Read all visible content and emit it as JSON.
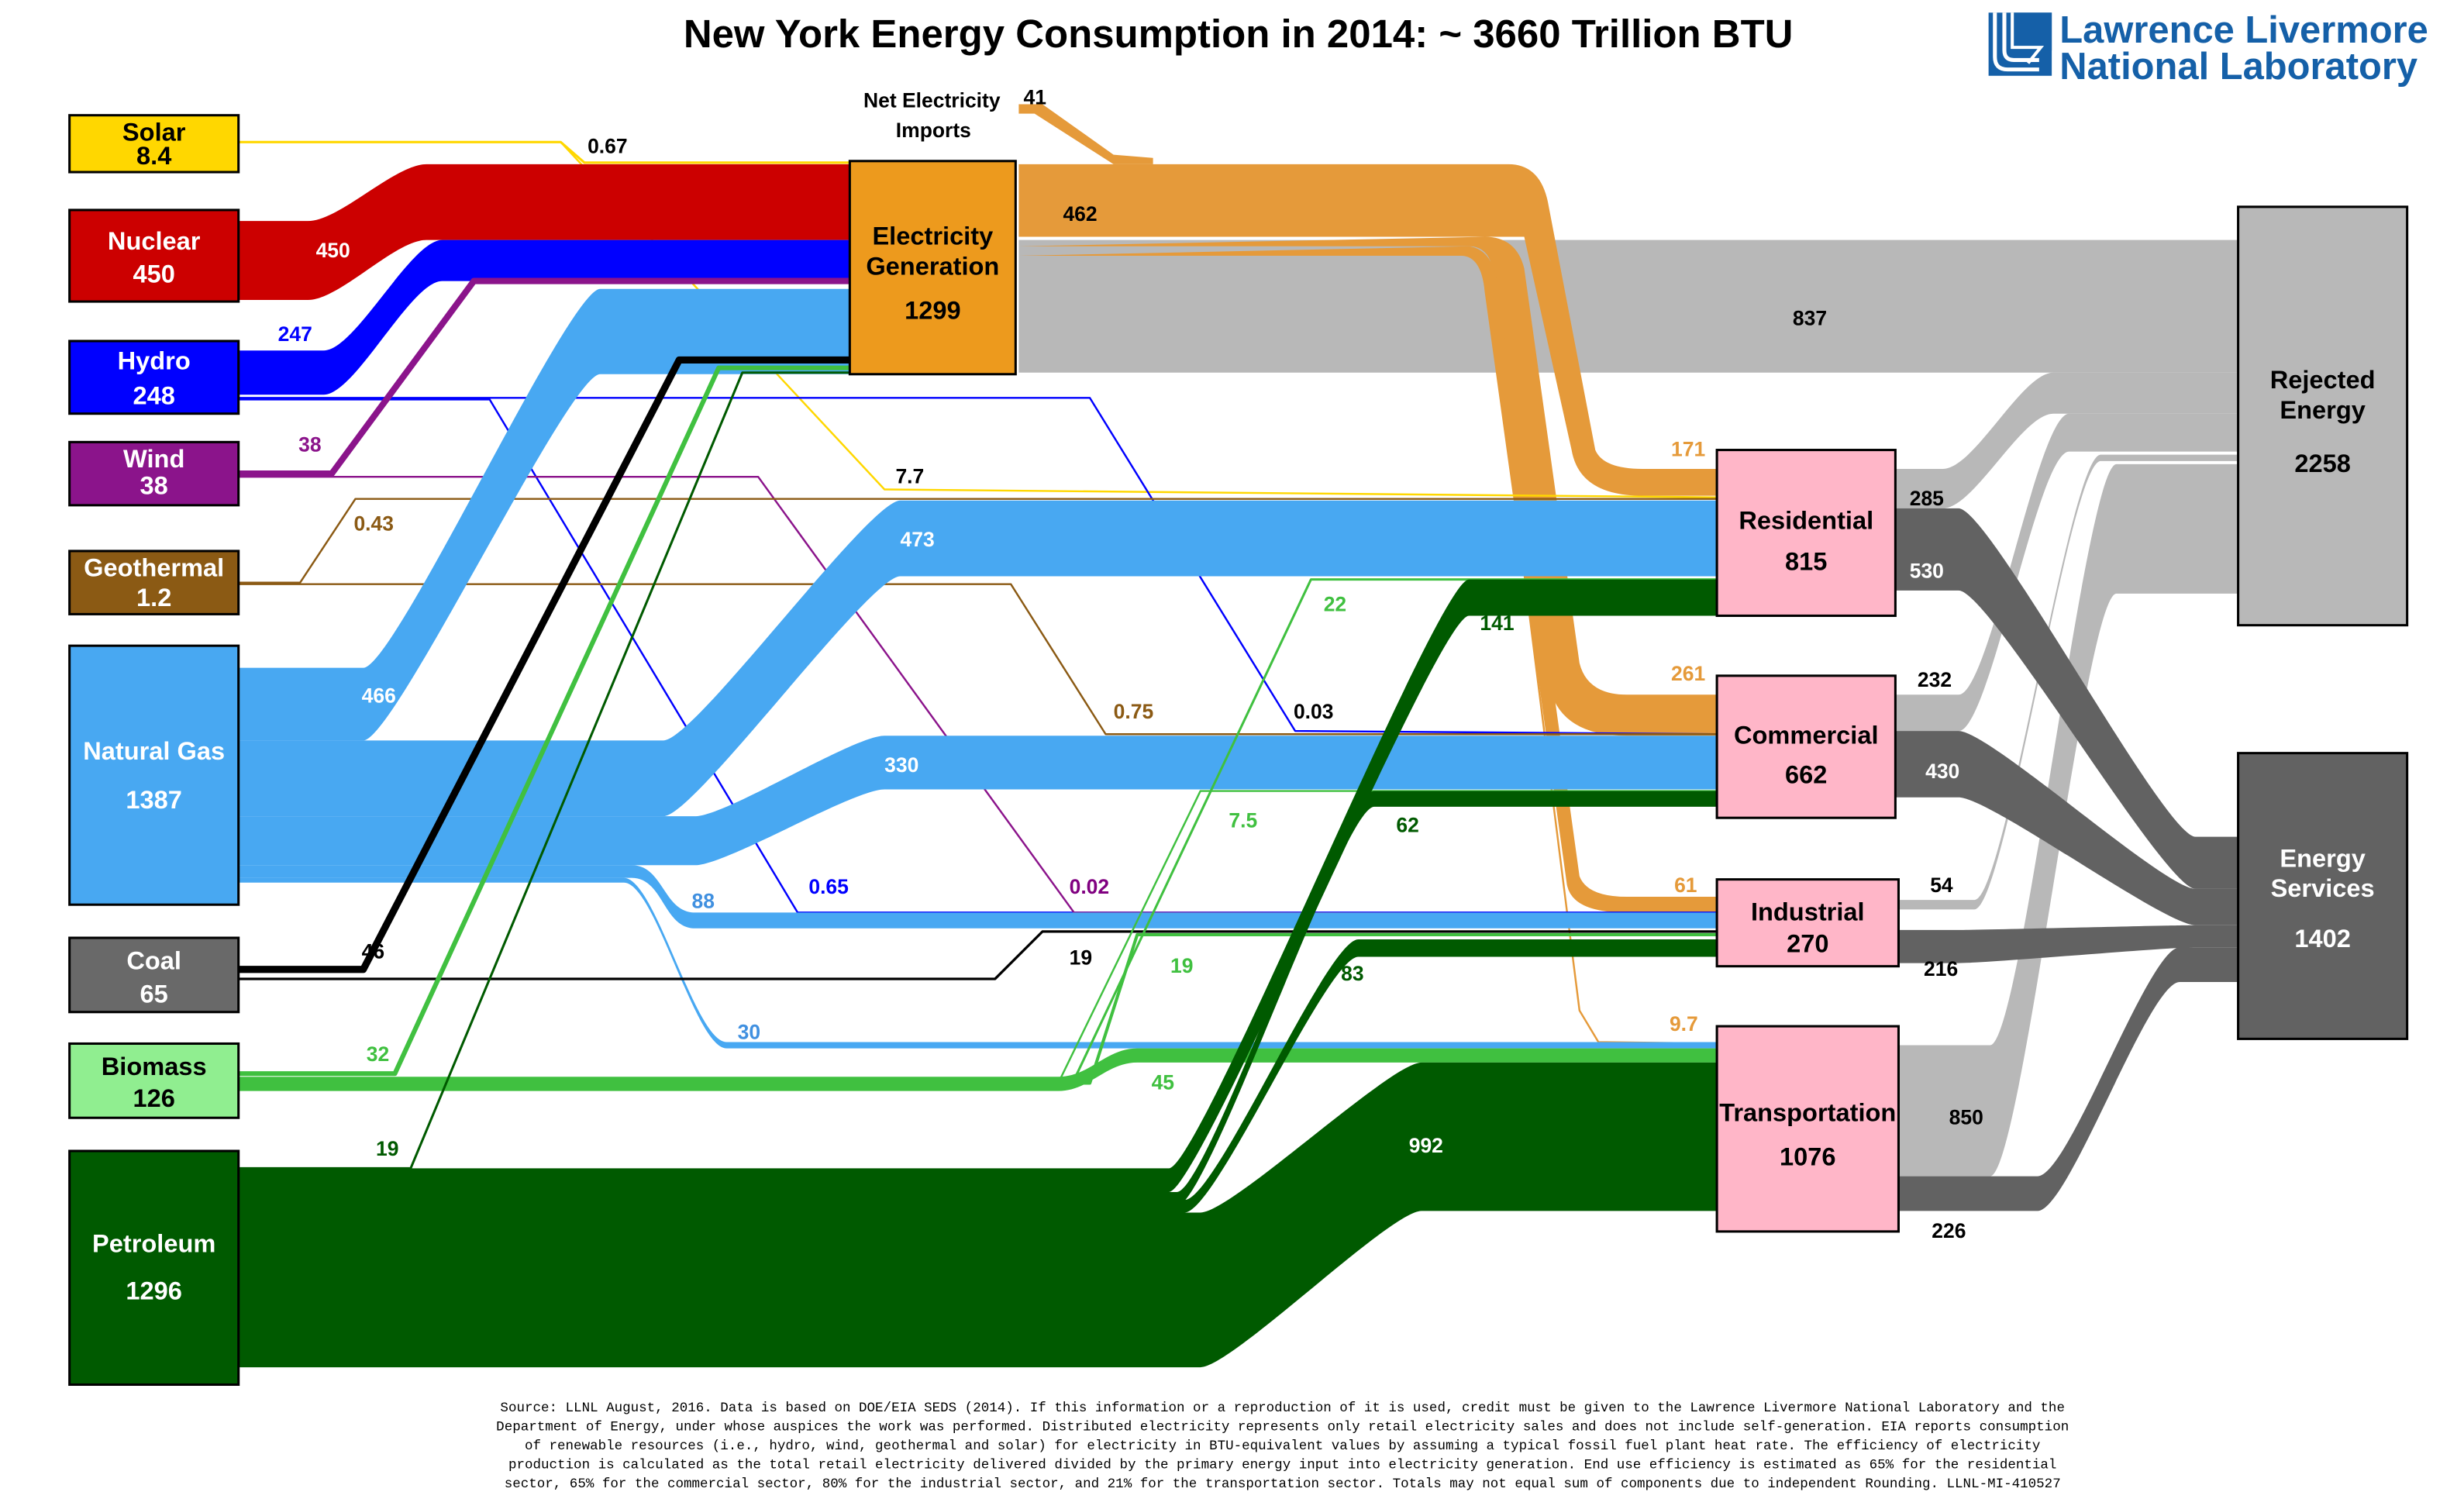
{
  "title": "New York Energy Consumption in 2014: ~ 3660 Trillion BTU",
  "logo": {
    "line1": "Lawrence Livermore",
    "line2": "National Laboratory",
    "color": "#1560a8"
  },
  "footer": [
    "Source: LLNL August, 2016. Data is based on DOE/EIA SEDS (2014). If this information or a reproduction of it is used, credit must be given to the Lawrence Livermore National Laboratory and the",
    "Department of Energy, under whose auspices the work was performed. Distributed electricity represents only retail electricity sales and does not include self-generation.  EIA reports consumption",
    "of renewable resources (i.e., hydro, wind, geothermal and solar) for electricity in BTU-equivalent values by assuming a typical fossil fuel plant heat rate.  The efficiency of electricity",
    "production is calculated as the total retail electricity delivered divided by the primary energy input into electricity generation.  End use efficiency is estimated as 65% for the residential",
    "sector, 65% for the commercial sector, 80% for the industrial sector, and 21% for the transportation sector.  Totals may not equal sum of components due to independent Rounding. LLNL-MI-410527"
  ],
  "chart_data": {
    "type": "sankey",
    "title": "New York Energy Consumption in 2014: ~ 3660 Trillion BTU",
    "units": "Trillion BTU",
    "nodes": [
      {
        "id": "solar",
        "label": "Solar",
        "value": "8.4",
        "color": "#ffd700",
        "text_color": "#000000"
      },
      {
        "id": "nuclear",
        "label": "Nuclear",
        "value": "450",
        "color": "#cc0000",
        "text_color": "#ffffff"
      },
      {
        "id": "hydro",
        "label": "Hydro",
        "value": "248",
        "color": "#0000ff",
        "text_color": "#ffffff"
      },
      {
        "id": "wind",
        "label": "Wind",
        "value": "38",
        "color": "#8b148b",
        "text_color": "#ffffff"
      },
      {
        "id": "geothermal",
        "label": "Geothermal",
        "value": "1.2",
        "color": "#8b5a14",
        "text_color": "#ffffff"
      },
      {
        "id": "natural_gas",
        "label": "Natural Gas",
        "value": "1387",
        "color": "#48a8f2",
        "text_color": "#ffffff"
      },
      {
        "id": "coal",
        "label": "Coal",
        "value": "65",
        "color": "#696969",
        "text_color": "#ffffff"
      },
      {
        "id": "biomass",
        "label": "Biomass",
        "value": "126",
        "color": "#90ee90",
        "text_color": "#000000"
      },
      {
        "id": "petroleum",
        "label": "Petroleum",
        "value": "1296",
        "color": "#005a00",
        "text_color": "#ffffff"
      },
      {
        "id": "net_imports",
        "label": "Net Electricity Imports",
        "value": "41",
        "color": "#e59a3a",
        "text_color": "#000000"
      },
      {
        "id": "elec_gen",
        "label": "Electricity Generation",
        "value": "1299",
        "color": "#ed9a1d",
        "text_color": "#000000"
      },
      {
        "id": "residential",
        "label": "Residential",
        "value": "815",
        "color": "#ffb6c8",
        "text_color": "#000000"
      },
      {
        "id": "commercial",
        "label": "Commercial",
        "value": "662",
        "color": "#ffb6c8",
        "text_color": "#000000"
      },
      {
        "id": "industrial",
        "label": "Industrial",
        "value": "270",
        "color": "#ffb6c8",
        "text_color": "#000000"
      },
      {
        "id": "transportation",
        "label": "Transportation",
        "value": "1076",
        "color": "#ffb6c8",
        "text_color": "#000000"
      },
      {
        "id": "rejected",
        "label": "Rejected Energy",
        "value": "2258",
        "color": "#b8b8b8",
        "text_color": "#000000"
      },
      {
        "id": "services",
        "label": "Energy Services",
        "value": "1402",
        "color": "#626262",
        "text_color": "#ffffff"
      }
    ],
    "flows": [
      {
        "from": "solar",
        "to": "elec_gen",
        "value": "0.67",
        "color": "#ffd700"
      },
      {
        "from": "solar",
        "to": "residential",
        "value": "7.7",
        "color": "#ffd700"
      },
      {
        "from": "nuclear",
        "to": "elec_gen",
        "value": "450",
        "color": "#cc0000"
      },
      {
        "from": "hydro",
        "to": "elec_gen",
        "value": "247",
        "color": "#0000ff"
      },
      {
        "from": "hydro",
        "to": "commercial",
        "value": "0.03",
        "color": "#0000ff"
      },
      {
        "from": "hydro",
        "to": "industrial",
        "value": "0.65",
        "color": "#0000ff"
      },
      {
        "from": "wind",
        "to": "elec_gen",
        "value": "38",
        "color": "#8b148b"
      },
      {
        "from": "wind",
        "to": "industrial",
        "value": "0.02",
        "color": "#8b148b"
      },
      {
        "from": "geothermal",
        "to": "residential",
        "value": "0.43",
        "color": "#8b5a14"
      },
      {
        "from": "geothermal",
        "to": "commercial",
        "value": "0.75",
        "color": "#8b5a14"
      },
      {
        "from": "natural_gas",
        "to": "elec_gen",
        "value": "466",
        "color": "#48a8f2"
      },
      {
        "from": "natural_gas",
        "to": "residential",
        "value": "473",
        "color": "#48a8f2"
      },
      {
        "from": "natural_gas",
        "to": "commercial",
        "value": "330",
        "color": "#48a8f2"
      },
      {
        "from": "natural_gas",
        "to": "industrial",
        "value": "88",
        "color": "#48a8f2"
      },
      {
        "from": "natural_gas",
        "to": "transportation",
        "value": "30",
        "color": "#48a8f2"
      },
      {
        "from": "coal",
        "to": "elec_gen",
        "value": "46",
        "color": "#000000"
      },
      {
        "from": "coal",
        "to": "industrial",
        "value": "19",
        "color": "#000000"
      },
      {
        "from": "biomass",
        "to": "elec_gen",
        "value": "32",
        "color": "#40c040"
      },
      {
        "from": "biomass",
        "to": "residential",
        "value": "22",
        "color": "#40c040"
      },
      {
        "from": "biomass",
        "to": "commercial",
        "value": "7.5",
        "color": "#40c040"
      },
      {
        "from": "biomass",
        "to": "industrial",
        "value": "19",
        "color": "#40c040"
      },
      {
        "from": "biomass",
        "to": "transportation",
        "value": "45",
        "color": "#40c040"
      },
      {
        "from": "petroleum",
        "to": "elec_gen",
        "value": "19",
        "color": "#005a00"
      },
      {
        "from": "petroleum",
        "to": "residential",
        "value": "141",
        "color": "#005a00"
      },
      {
        "from": "petroleum",
        "to": "commercial",
        "value": "62",
        "color": "#005a00"
      },
      {
        "from": "petroleum",
        "to": "industrial",
        "value": "83",
        "color": "#005a00"
      },
      {
        "from": "petroleum",
        "to": "transportation",
        "value": "992",
        "color": "#005a00"
      },
      {
        "from": "net_imports",
        "to": "elec_gen",
        "value": "41",
        "color": "#e59a3a"
      },
      {
        "from": "elec_gen",
        "to": "distributed",
        "value": "462",
        "color": "#e59a3a"
      },
      {
        "from": "elec_gen",
        "to": "rejected",
        "value": "837",
        "color": "#b8b8b8"
      },
      {
        "from": "elec_gen",
        "to": "residential",
        "value": "171",
        "color": "#e59a3a"
      },
      {
        "from": "elec_gen",
        "to": "commercial",
        "value": "261",
        "color": "#e59a3a"
      },
      {
        "from": "elec_gen",
        "to": "industrial",
        "value": "61",
        "color": "#e59a3a"
      },
      {
        "from": "elec_gen",
        "to": "transportation",
        "value": "9.7",
        "color": "#e59a3a"
      },
      {
        "from": "residential",
        "to": "rejected",
        "value": "285",
        "color": "#b8b8b8"
      },
      {
        "from": "residential",
        "to": "services",
        "value": "530",
        "color": "#626262"
      },
      {
        "from": "commercial",
        "to": "rejected",
        "value": "232",
        "color": "#b8b8b8"
      },
      {
        "from": "commercial",
        "to": "services",
        "value": "430",
        "color": "#626262"
      },
      {
        "from": "industrial",
        "to": "rejected",
        "value": "54",
        "color": "#b8b8b8"
      },
      {
        "from": "industrial",
        "to": "services",
        "value": "216",
        "color": "#626262"
      },
      {
        "from": "transportation",
        "to": "rejected",
        "value": "850",
        "color": "#b8b8b8"
      },
      {
        "from": "transportation",
        "to": "services",
        "value": "226",
        "color": "#626262"
      }
    ]
  }
}
